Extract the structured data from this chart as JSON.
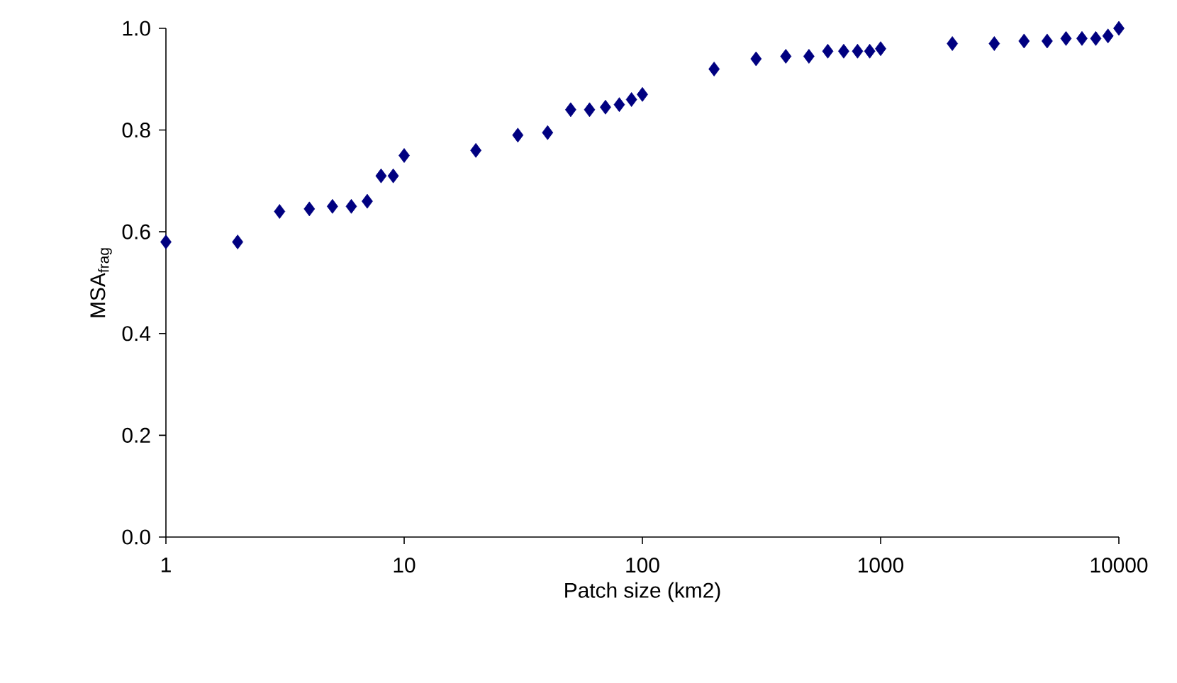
{
  "chart_data": {
    "type": "scatter",
    "xlabel": "Patch size (km2)",
    "ylabel": "MSA$_{frag}$",
    "log": "x",
    "marker": "diamond",
    "grid": false,
    "x": [
      1,
      2,
      3,
      4,
      5,
      6,
      7,
      8,
      9,
      10,
      20,
      30,
      40,
      50,
      60,
      70,
      80,
      90,
      100,
      200,
      300,
      400,
      500,
      600,
      700,
      800,
      900,
      1000,
      2000,
      3000,
      4000,
      5000,
      6000,
      7000,
      8000,
      9000,
      10000
    ],
    "series": [
      {
        "color": "#000080",
        "values": [
          0.58,
          0.58,
          0.64,
          0.645,
          0.65,
          0.65,
          0.66,
          0.71,
          0.71,
          0.75,
          0.76,
          0.79,
          0.795,
          0.84,
          0.84,
          0.845,
          0.85,
          0.86,
          0.87,
          0.92,
          0.94,
          0.945,
          0.945,
          0.955,
          0.955,
          0.955,
          0.955,
          0.96,
          0.97,
          0.97,
          0.975,
          0.975,
          0.98,
          0.98,
          0.98,
          0.985,
          1.0
        ]
      }
    ],
    "xlim": [
      1,
      10000
    ],
    "ylim": [
      0,
      1
    ],
    "xticks": [
      {
        "value": 1,
        "label": "1"
      },
      {
        "value": 10,
        "label": "10"
      },
      {
        "value": 100,
        "label": "100"
      },
      {
        "value": 1000,
        "label": "1000"
      },
      {
        "value": 10000,
        "label": "10000"
      }
    ],
    "yticks": [
      {
        "value": 0,
        "label": "0.0"
      },
      {
        "value": 0.2,
        "label": "0.2"
      },
      {
        "value": 0.4,
        "label": "0.4"
      },
      {
        "value": 0.6,
        "label": "0.6"
      },
      {
        "value": 0.8,
        "label": "0.8"
      },
      {
        "value": 1,
        "label": "1.0"
      }
    ]
  }
}
